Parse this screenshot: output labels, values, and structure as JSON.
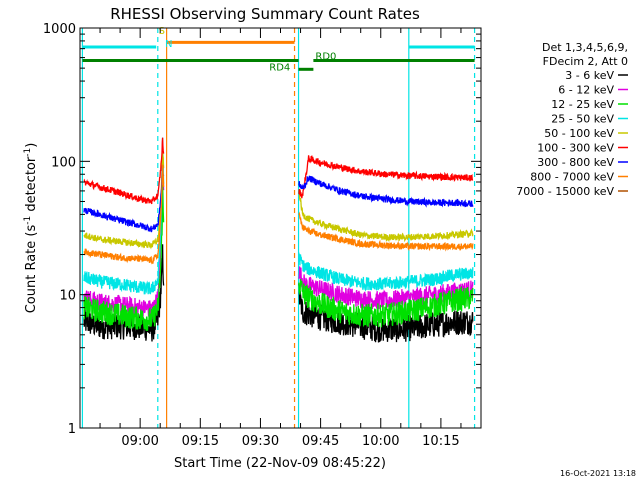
{
  "chart_data": {
    "type": "line",
    "title": "RHESSI Observing Summary Count Rates",
    "xlabel": "Start Time (22-Nov-09 08:45:22)",
    "ylabel": "Count Rate (s⁻¹ detector⁻¹)",
    "ylabel_main": "Count Rate (s",
    "ylabel_sup1": "-1",
    "ylabel_mid": " detector",
    "ylabel_sup2": "-1",
    "ylabel_end": ")",
    "y_scale": "log",
    "ylim": [
      1,
      1000
    ],
    "xlim_minutes": [
      0,
      100
    ],
    "x_tick_minutes": [
      15,
      30,
      45,
      60,
      75,
      90
    ],
    "x_tick_labels": [
      "09:00",
      "09:15",
      "09:30",
      "09:45",
      "10:00",
      "10:15"
    ],
    "y_ticks": [
      1,
      10,
      100,
      1000
    ],
    "y_tick_labels": [
      "1",
      "10",
      "100",
      "1000"
    ],
    "legend_title_lines": [
      "Det 1,3,4,5,6,9,",
      "FDecim 2, Att 0"
    ],
    "legend_placement": "right",
    "gap_minutes": [
      21,
      54
    ],
    "vlines": [
      {
        "minute": 0.6,
        "color": "#00e5e5",
        "style": "solid"
      },
      {
        "minute": 19.4,
        "color": "#00e5e5",
        "style": "dashed"
      },
      {
        "minute": 21.6,
        "color": "#ff7f00",
        "style": "solid"
      },
      {
        "minute": 53.5,
        "color": "#ff7f00",
        "style": "dashed"
      },
      {
        "minute": 54.5,
        "color": "#00e5e5",
        "style": "solid"
      },
      {
        "minute": 82.0,
        "color": "#00e5e5",
        "style": "solid"
      },
      {
        "minute": 98.4,
        "color": "#00e5e5",
        "style": "dashed"
      }
    ],
    "status_bars": [
      {
        "label": "",
        "color": "#00e5e5",
        "segments": [
          [
            0.6,
            19.0
          ],
          [
            82.0,
            98.4
          ]
        ],
        "y": 720
      },
      {
        "label": "",
        "color": "#ff7f00",
        "segments": [
          [
            21.6,
            53.5
          ]
        ],
        "y": 780
      },
      {
        "label": "",
        "color": "#008000",
        "segments": [
          [
            0.6,
            54.5
          ],
          [
            58.2,
            98.4
          ]
        ],
        "y": 570
      },
      {
        "label": "",
        "color": "#008000",
        "segments": [
          [
            54.5,
            58.2
          ]
        ],
        "y": 490
      }
    ],
    "annotations": [
      {
        "text": "S",
        "minute": 19.6,
        "y": 900,
        "color": "#c8c800"
      },
      {
        "text": "N",
        "minute": 21.2,
        "y": 720,
        "color": "#00e5e5"
      },
      {
        "text": "RD0",
        "minute": 58.7,
        "y": 580,
        "color": "#008000"
      },
      {
        "text": "RD4",
        "minute": 47.2,
        "y": 480,
        "color": "#008000"
      }
    ],
    "series": [
      {
        "name": "3 - 6 keV",
        "color": "#000000",
        "pts1": [
          [
            1,
            6.3
          ],
          [
            5,
            5.8
          ],
          [
            10,
            5.8
          ],
          [
            15,
            5.7
          ],
          [
            18,
            5.5
          ],
          [
            19.5,
            6.5
          ],
          [
            20.3,
            12
          ],
          [
            20.6,
            20
          ],
          [
            20.9,
            12
          ]
        ],
        "pts2": [
          [
            54.6,
            10
          ],
          [
            55.5,
            7.5
          ],
          [
            58,
            7
          ],
          [
            62,
            6.5
          ],
          [
            68,
            6
          ],
          [
            74,
            5.5
          ],
          [
            80,
            5.5
          ],
          [
            86,
            5.8
          ],
          [
            92,
            6.2
          ],
          [
            98,
            6.3
          ]
        ],
        "noise": 0.1
      },
      {
        "name": "6 - 12 keV",
        "color": "#e000e0",
        "pts1": [
          [
            1,
            9.5
          ],
          [
            5,
            8.8
          ],
          [
            10,
            8.4
          ],
          [
            15,
            8.0
          ],
          [
            18,
            7.8
          ],
          [
            19.5,
            9.5
          ],
          [
            20.3,
            30
          ],
          [
            20.6,
            120
          ],
          [
            20.9,
            60
          ]
        ],
        "pts2": [
          [
            54.6,
            15
          ],
          [
            56,
            12
          ],
          [
            60,
            11
          ],
          [
            65,
            10
          ],
          [
            70,
            9.3
          ],
          [
            76,
            9
          ],
          [
            82,
            9.5
          ],
          [
            88,
            10
          ],
          [
            93,
            10.5
          ],
          [
            98,
            11
          ]
        ],
        "noise": 0.07
      },
      {
        "name": "12 - 25 keV",
        "color": "#00e000",
        "pts1": [
          [
            1,
            8
          ],
          [
            5,
            7.5
          ],
          [
            10,
            7
          ],
          [
            15,
            6.6
          ],
          [
            18,
            6.5
          ],
          [
            19.5,
            8
          ],
          [
            20.3,
            20
          ],
          [
            20.6,
            60
          ],
          [
            20.9,
            30
          ]
        ],
        "pts2": [
          [
            54.6,
            12
          ],
          [
            56,
            10
          ],
          [
            60,
            8.5
          ],
          [
            65,
            7.5
          ],
          [
            70,
            7
          ],
          [
            76,
            7
          ],
          [
            82,
            7.5
          ],
          [
            88,
            8.2
          ],
          [
            93,
            9
          ],
          [
            98,
            9.5
          ]
        ],
        "noise": 0.09
      },
      {
        "name": "25 - 50 keV",
        "color": "#00e5e5",
        "pts1": [
          [
            1,
            13.5
          ],
          [
            5,
            12.5
          ],
          [
            10,
            12
          ],
          [
            15,
            11.3
          ],
          [
            18,
            11
          ],
          [
            19.5,
            13
          ],
          [
            20.3,
            40
          ],
          [
            20.6,
            150
          ],
          [
            20.9,
            60
          ]
        ],
        "pts2": [
          [
            54.6,
            19
          ],
          [
            56,
            16
          ],
          [
            60,
            14.5
          ],
          [
            65,
            13
          ],
          [
            70,
            12.2
          ],
          [
            76,
            12
          ],
          [
            82,
            12.5
          ],
          [
            88,
            13
          ],
          [
            93,
            14
          ],
          [
            98,
            14.5
          ]
        ],
        "noise": 0.05
      },
      {
        "name": "50 - 100 keV",
        "color": "#c8c800",
        "pts1": [
          [
            1,
            28
          ],
          [
            5,
            26
          ],
          [
            10,
            25
          ],
          [
            15,
            24
          ],
          [
            18,
            23.5
          ],
          [
            19.5,
            26
          ],
          [
            20.3,
            60
          ],
          [
            20.6,
            130
          ],
          [
            20.9,
            80
          ]
        ],
        "pts2": [
          [
            54.6,
            60
          ],
          [
            55.5,
            40
          ],
          [
            57,
            37
          ],
          [
            60,
            34
          ],
          [
            65,
            31
          ],
          [
            70,
            28
          ],
          [
            76,
            27
          ],
          [
            82,
            27
          ],
          [
            88,
            27.5
          ],
          [
            93,
            28
          ],
          [
            98,
            29
          ]
        ],
        "noise": 0.025
      },
      {
        "name": "100 - 300 keV",
        "color": "#ff0000",
        "pts1": [
          [
            1,
            70
          ],
          [
            5,
            64
          ],
          [
            10,
            58
          ],
          [
            15,
            52
          ],
          [
            18,
            50
          ],
          [
            19.5,
            56
          ],
          [
            20.3,
            100
          ],
          [
            20.6,
            150
          ],
          [
            20.9,
            100
          ]
        ],
        "pts2": [
          [
            54.6,
            60
          ],
          [
            55.5,
            55
          ],
          [
            57,
            105
          ],
          [
            60,
            98
          ],
          [
            65,
            90
          ],
          [
            70,
            84
          ],
          [
            76,
            80
          ],
          [
            82,
            78
          ],
          [
            88,
            77
          ],
          [
            93,
            76
          ],
          [
            98,
            75
          ]
        ],
        "noise": 0.025
      },
      {
        "name": "300 - 800 keV",
        "color": "#0000ff",
        "pts1": [
          [
            1,
            43
          ],
          [
            5,
            40
          ],
          [
            10,
            36
          ],
          [
            15,
            33
          ],
          [
            18,
            31
          ],
          [
            19.5,
            34
          ],
          [
            20.3,
            60
          ],
          [
            20.6,
            90
          ],
          [
            20.9,
            70
          ]
        ],
        "pts2": [
          [
            54.6,
            68
          ],
          [
            55.5,
            62
          ],
          [
            57,
            75
          ],
          [
            60,
            68
          ],
          [
            65,
            60
          ],
          [
            70,
            55
          ],
          [
            76,
            52
          ],
          [
            82,
            50
          ],
          [
            88,
            49
          ],
          [
            93,
            49
          ],
          [
            98,
            48
          ]
        ],
        "noise": 0.025
      },
      {
        "name": "800 - 7000 keV",
        "color": "#ff7f00",
        "pts1": [
          [
            1,
            21
          ],
          [
            5,
            20
          ],
          [
            10,
            19
          ],
          [
            15,
            18.5
          ],
          [
            18,
            18
          ],
          [
            19.5,
            20
          ],
          [
            20.3,
            45
          ],
          [
            20.6,
            100
          ],
          [
            20.9,
            60
          ]
        ],
        "pts2": [
          [
            54.6,
            40
          ],
          [
            55.5,
            32
          ],
          [
            57,
            30
          ],
          [
            60,
            28
          ],
          [
            65,
            26
          ],
          [
            70,
            24
          ],
          [
            76,
            23.5
          ],
          [
            82,
            23
          ],
          [
            88,
            23
          ],
          [
            93,
            23
          ],
          [
            98,
            23
          ]
        ],
        "noise": 0.025
      },
      {
        "name": "7000 - 15000 keV",
        "color": "#b05000",
        "pts1": [],
        "pts2": [],
        "noise": 0.0
      }
    ]
  },
  "timestamp": "16-Oct-2021 13:18"
}
